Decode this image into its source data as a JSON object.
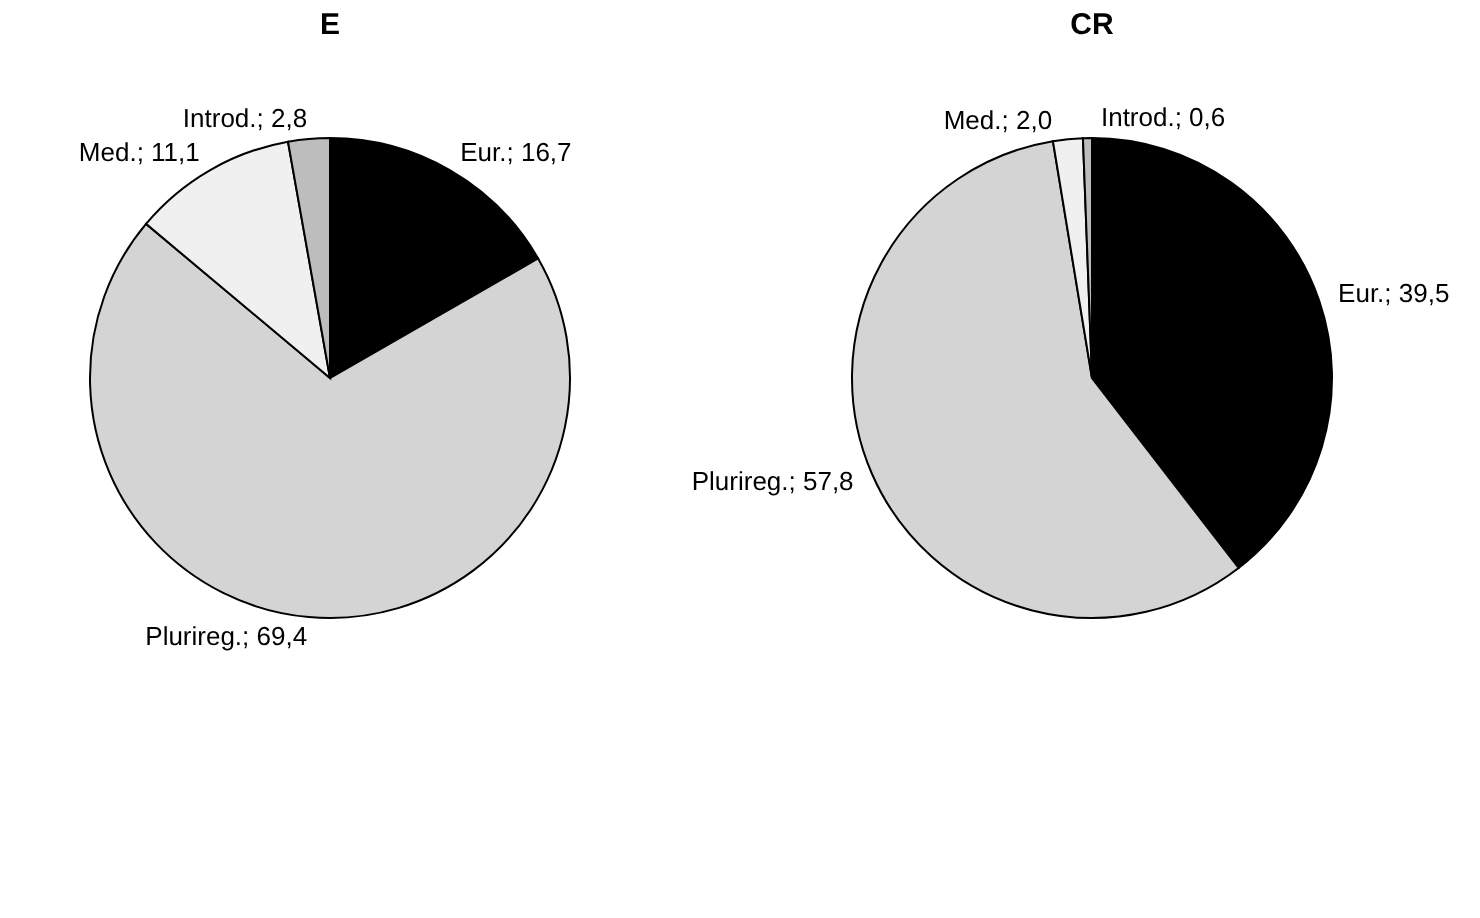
{
  "chart_data": [
    {
      "type": "pie",
      "title": "E",
      "categories": [
        "Eur.",
        "Plurireg.",
        "Med.",
        "Introd."
      ],
      "values": [
        16.7,
        69.4,
        11.1,
        2.8
      ],
      "value_labels": [
        "16,7",
        "69,4",
        "11,1",
        "2,8"
      ],
      "colors": [
        "#000000",
        "#d4d4d4",
        "#f0f0f0",
        "#bdbdbd"
      ]
    },
    {
      "type": "pie",
      "title": "CR",
      "categories": [
        "Eur.",
        "Plurireg.",
        "Med.",
        "Introd."
      ],
      "values": [
        39.5,
        57.8,
        2.0,
        0.6
      ],
      "value_labels": [
        "39,5",
        "57,8",
        "2,0",
        "0,6"
      ],
      "colors": [
        "#000000",
        "#d4d4d4",
        "#f0f0f0",
        "#bdbdbd"
      ]
    }
  ]
}
